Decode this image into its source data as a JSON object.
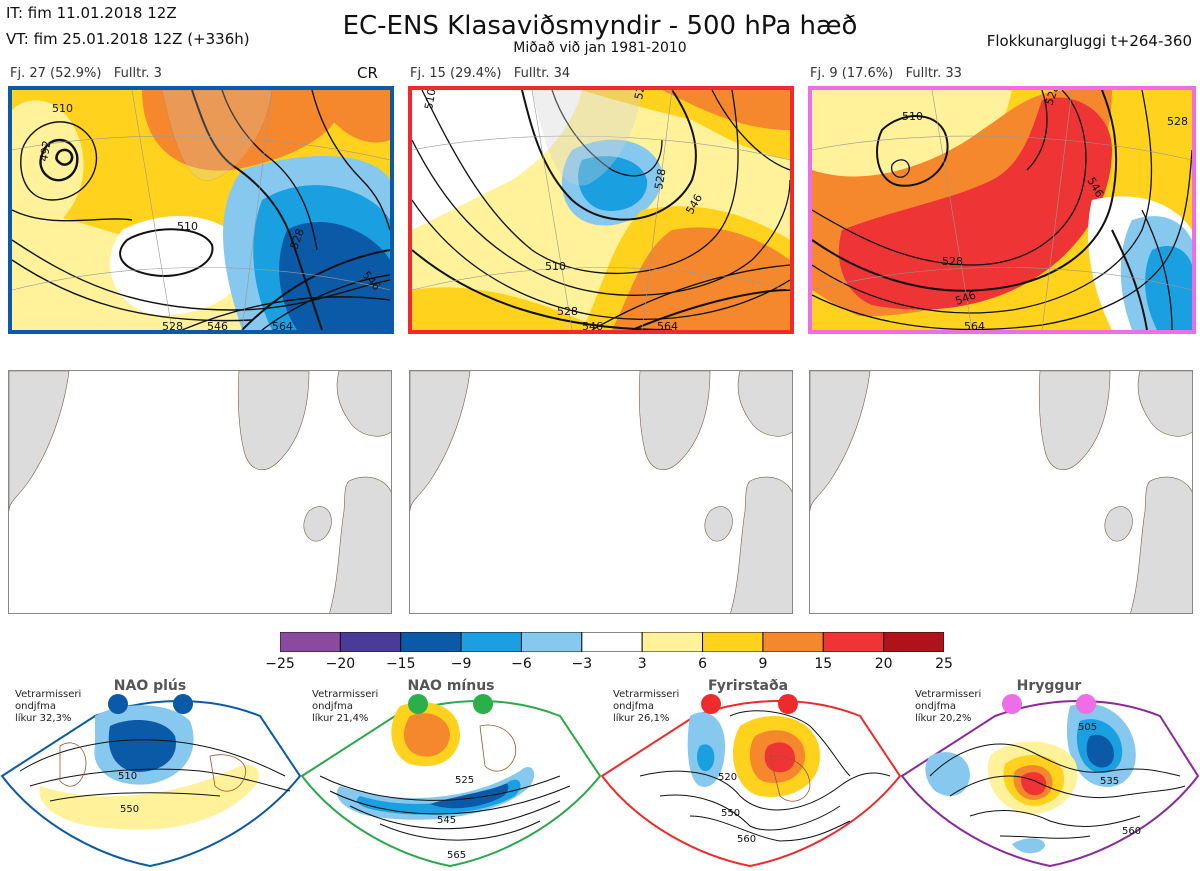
{
  "header": {
    "initial_time": "IT: fim 11.01.2018 12Z",
    "valid_time": "VT: fim 25.01.2018 12Z  (+336h)",
    "title": "EC-ENS Klasaviðsmyndir - 500 hPa hæð",
    "subtitle": "Miðað við jan 1981-2010",
    "window": "Flokkunargluggi t+264-360"
  },
  "clusters": [
    {
      "label": "Fj. 27 (52.9%)",
      "rep": "Fulltr. 3",
      "tag": "CR",
      "border_color": "#0a5aa8",
      "contours": [
        "510",
        "510",
        "528",
        "546",
        "528",
        "546",
        "564",
        "492"
      ]
    },
    {
      "label": "Fj. 15 (29.4%)",
      "rep": "Fulltr. 34",
      "tag": "",
      "border_color": "#ee2a2a",
      "contours": [
        "510",
        "528",
        "546",
        "528",
        "546",
        "564",
        "510",
        "528"
      ]
    },
    {
      "label": "Fj. 9 (17.6%)",
      "rep": "Fulltr. 33",
      "tag": "",
      "border_color": "#ee6ee8",
      "contours": [
        "510",
        "528",
        "546",
        "528",
        "546",
        "564",
        "528"
      ]
    }
  ],
  "colorbar": {
    "colors": [
      "#8a4aa0",
      "#4a3a9a",
      "#0a5aa8",
      "#1aa0e0",
      "#86c8ee",
      "#ffffff",
      "#fff29a",
      "#ffd21e",
      "#f5882d",
      "#ee3434",
      "#b0121a"
    ],
    "ticks": [
      "−25",
      "−20",
      "−15",
      "−9",
      "−6",
      "−3",
      "3",
      "6",
      "9",
      "15",
      "20",
      "25"
    ]
  },
  "regimes": [
    {
      "name": "NAO plús",
      "color": "#0a5aa8",
      "info": "Vetrarmisseri\nondjfma\nlíkur 32,3%",
      "contours": [
        "510",
        "550"
      ],
      "dot_color": "#0a5aa8"
    },
    {
      "name": "NAO mínus",
      "color": "#2aa84a",
      "info": "Vetrarmisseri\nondjfma\nlíkur 21,4%",
      "contours": [
        "525",
        "545",
        "565"
      ],
      "dot_color": "#2ab04a"
    },
    {
      "name": "Fyrirstaða",
      "color": "#ee2a2a",
      "info": "Vetrarmisseri\nondjfma\nlíkur 26,1%",
      "contours": [
        "520",
        "550",
        "560"
      ],
      "dot_color": "#ee2a2a"
    },
    {
      "name": "Hryggur",
      "color": "#8a2a9a",
      "info": "Vetrarmisseri\nondjfma\nlíkur 20,2%",
      "contours": [
        "505",
        "535",
        "560"
      ],
      "dot_color": "#ee6ee8"
    }
  ]
}
